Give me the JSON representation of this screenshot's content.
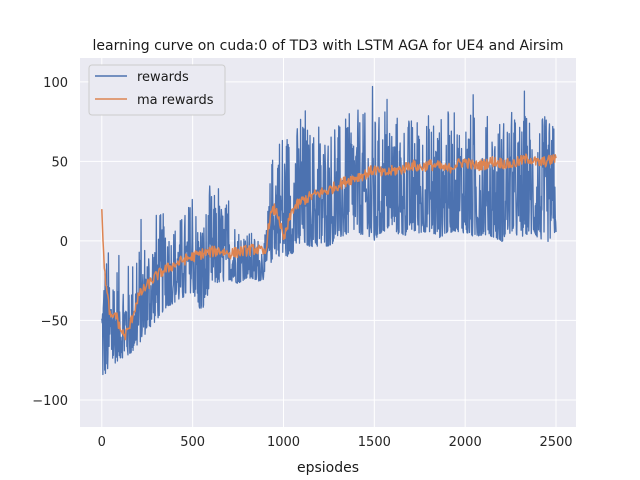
{
  "chart_data": {
    "type": "line",
    "title": "learning curve on cuda:0 of TD3 with LSTM AGA for UE4 and Airsim",
    "xlabel": "epsiodes",
    "ylabel": "",
    "xlim": [
      -120,
      2610
    ],
    "ylim": [
      -117,
      115
    ],
    "x_ticks": [
      0,
      500,
      1000,
      1500,
      2000,
      2500
    ],
    "y_ticks": [
      -100,
      -50,
      0,
      50,
      100
    ],
    "x_tick_labels": [
      "0",
      "500",
      "1000",
      "1500",
      "2000",
      "2500"
    ],
    "y_tick_labels": [
      "−100",
      "−50",
      "0",
      "50",
      "100"
    ],
    "grid": true,
    "legend_position": "top-left",
    "series": [
      {
        "name": "rewards",
        "color": "#4c72b0",
        "x": [
          0,
          50,
          100,
          150,
          200,
          250,
          300,
          350,
          400,
          450,
          500,
          550,
          600,
          650,
          700,
          750,
          800,
          850,
          900,
          950,
          1000,
          1050,
          1100,
          1150,
          1200,
          1250,
          1300,
          1350,
          1400,
          1450,
          1500,
          1550,
          1600,
          1650,
          1700,
          1750,
          1800,
          1850,
          1900,
          1950,
          2000,
          2050,
          2100,
          2150,
          2200,
          2250,
          2300,
          2350,
          2400,
          2450,
          2500
        ],
        "min": [
          -107,
          -95,
          -88,
          -85,
          -80,
          -70,
          -65,
          -55,
          -50,
          -48,
          -45,
          -60,
          -40,
          -38,
          -35,
          -35,
          -30,
          -32,
          -30,
          -25,
          -30,
          -25,
          -20,
          -20,
          -20,
          -20,
          -15,
          -12,
          -10,
          -15,
          -20,
          -10,
          -8,
          -15,
          -10,
          -12,
          -10,
          -15,
          -12,
          -10,
          -12,
          -15,
          -12,
          -15,
          -18,
          -12,
          -15,
          -12,
          -15,
          -18,
          -10
        ],
        "max": [
          22,
          10,
          5,
          0,
          15,
          20,
          35,
          30,
          25,
          30,
          45,
          30,
          45,
          40,
          35,
          20,
          15,
          10,
          10,
          90,
          95,
          90,
          95,
          90,
          88,
          92,
          90,
          95,
          100,
          98,
          100,
          95,
          100,
          98,
          95,
          100,
          98,
          95,
          100,
          98,
          100,
          98,
          95,
          100,
          98,
          100,
          95,
          100,
          98,
          95,
          90
        ]
      },
      {
        "name": "ma rewards",
        "color": "#dd8452",
        "x": [
          0,
          10,
          25,
          50,
          75,
          100,
          125,
          150,
          175,
          200,
          250,
          300,
          350,
          400,
          450,
          500,
          550,
          600,
          650,
          700,
          750,
          800,
          850,
          900,
          925,
          950,
          975,
          1000,
          1050,
          1100,
          1150,
          1200,
          1250,
          1300,
          1350,
          1400,
          1450,
          1500,
          1550,
          1600,
          1650,
          1700,
          1750,
          1800,
          1850,
          1900,
          1950,
          2000,
          2050,
          2100,
          2150,
          2200,
          2250,
          2300,
          2350,
          2400,
          2450,
          2500
        ],
        "y": [
          20,
          -10,
          -30,
          -50,
          -45,
          -55,
          -60,
          -55,
          -45,
          -35,
          -28,
          -22,
          -18,
          -15,
          -12,
          -10,
          -8,
          -7,
          -6,
          -8,
          -7,
          -6,
          -5,
          -8,
          15,
          20,
          15,
          0,
          20,
          25,
          28,
          30,
          32,
          35,
          38,
          40,
          42,
          45,
          42,
          44,
          45,
          48,
          46,
          48,
          47,
          45,
          48,
          50,
          47,
          48,
          50,
          49,
          48,
          50,
          52,
          49,
          50,
          52
        ]
      }
    ]
  }
}
